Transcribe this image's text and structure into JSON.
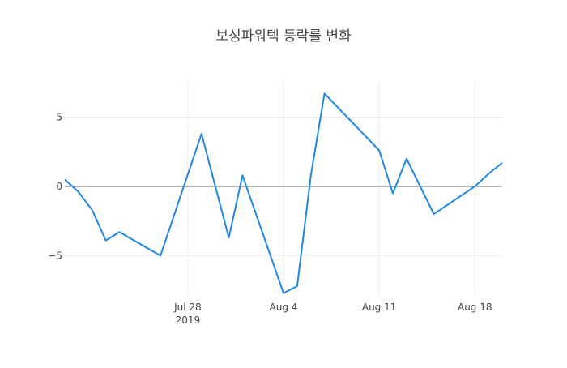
{
  "chart_data": {
    "type": "line",
    "title": "보성파워텍 등락률 변화",
    "xlabel": "",
    "ylabel": "",
    "x_range": [
      "2019-07-19",
      "2019-08-20"
    ],
    "ylim": [
      -7.9,
      7.6
    ],
    "grid": true,
    "zero_line": true,
    "x_ticks": [
      {
        "date": "2019-07-28",
        "label": "Jul 28",
        "sublabel": "2019"
      },
      {
        "date": "2019-08-04",
        "label": "Aug 4",
        "sublabel": ""
      },
      {
        "date": "2019-08-11",
        "label": "Aug 11",
        "sublabel": ""
      },
      {
        "date": "2019-08-18",
        "label": "Aug 18",
        "sublabel": ""
      }
    ],
    "y_ticks": [
      {
        "value": 5,
        "label": "5"
      },
      {
        "value": 0,
        "label": "0"
      },
      {
        "value": -5,
        "label": "−5"
      }
    ],
    "series": [
      {
        "color": "#1f87e5",
        "x": [
          "2019-07-19",
          "2019-07-20",
          "2019-07-21",
          "2019-07-22",
          "2019-07-23",
          "2019-07-26",
          "2019-07-29",
          "2019-07-31",
          "2019-08-01",
          "2019-08-04",
          "2019-08-05",
          "2019-08-06",
          "2019-08-07",
          "2019-08-11",
          "2019-08-12",
          "2019-08-13",
          "2019-08-15",
          "2019-08-18",
          "2019-08-19",
          "2019-08-20"
        ],
        "y": [
          0.5,
          -0.4,
          -1.7,
          -3.9,
          -3.3,
          -5.0,
          3.8,
          -3.7,
          0.8,
          -7.7,
          -7.2,
          0.8,
          6.7,
          2.6,
          -0.5,
          2.0,
          -2.0,
          0.0,
          0.9,
          1.7
        ]
      }
    ]
  }
}
